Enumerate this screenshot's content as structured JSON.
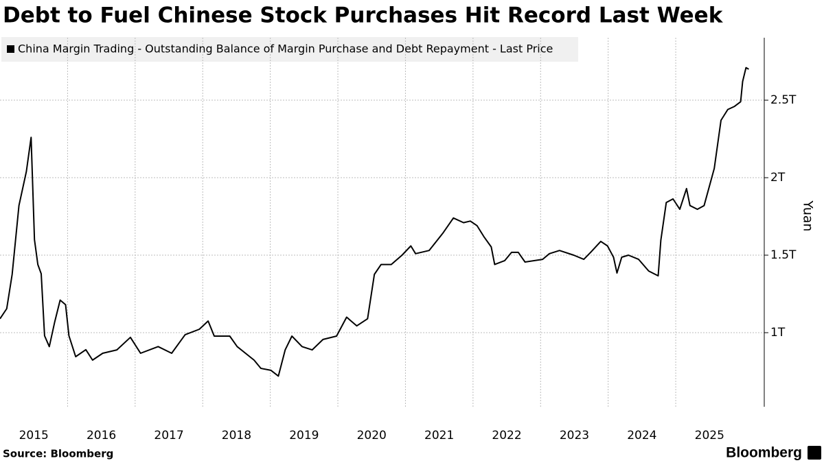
{
  "chart_data": {
    "type": "line",
    "title": "Debt to Fuel Chinese Stock Purchases Hit Record Last Week",
    "y_label": "Yuan",
    "source": "Source: Bloomberg",
    "brand": "Bloomberg",
    "grid": true,
    "x": [
      2015.0,
      2015.1,
      2015.18,
      2015.28,
      2015.39,
      2015.46,
      2015.51,
      2015.56,
      2015.61,
      2015.66,
      2015.73,
      2015.81,
      2015.89,
      2015.97,
      2016.02,
      2016.12,
      2016.27,
      2016.37,
      2016.52,
      2016.73,
      2016.93,
      2017.08,
      2017.34,
      2017.54,
      2017.74,
      2017.95,
      2018.08,
      2018.17,
      2018.4,
      2018.51,
      2018.76,
      2018.86,
      2019.01,
      2019.12,
      2019.22,
      2019.32,
      2019.47,
      2019.62,
      2019.78,
      2019.98,
      2020.13,
      2020.28,
      2020.44,
      2020.54,
      2020.64,
      2020.79,
      2020.95,
      2021.08,
      2021.15,
      2021.35,
      2021.55,
      2021.71,
      2021.86,
      2021.96,
      2022.06,
      2022.16,
      2022.27,
      2022.32,
      2022.47,
      2022.57,
      2022.67,
      2022.77,
      2023.03,
      2023.13,
      2023.28,
      2023.49,
      2023.64,
      2023.74,
      2023.89,
      2023.99,
      2024.08,
      2024.13,
      2024.2,
      2024.3,
      2024.45,
      2024.6,
      2024.74,
      2024.78,
      2024.86,
      2024.96,
      2025.06,
      2025.16,
      2025.21,
      2025.32,
      2025.42,
      2025.57,
      2025.67,
      2025.77,
      2025.87,
      2025.96,
      2025.99,
      2026.04,
      2026.08
    ],
    "series": [
      {
        "name": "China Margin Trading - Outstanding Balance of Margin Purchase and Debt Repayment - Last Price",
        "color": "#000000",
        "values": [
          1.09,
          1.155,
          1.376,
          1.82,
          2.04,
          2.26,
          1.6,
          1.44,
          1.38,
          0.98,
          0.91,
          1.07,
          1.21,
          1.18,
          0.98,
          0.845,
          0.89,
          0.823,
          0.867,
          0.889,
          0.97,
          0.867,
          0.91,
          0.867,
          0.987,
          1.022,
          1.075,
          0.978,
          0.978,
          0.91,
          0.823,
          0.77,
          0.757,
          0.72,
          0.889,
          0.978,
          0.91,
          0.889,
          0.956,
          0.978,
          1.1,
          1.044,
          1.09,
          1.376,
          1.44,
          1.44,
          1.5,
          1.56,
          1.51,
          1.53,
          1.64,
          1.74,
          1.71,
          1.72,
          1.69,
          1.62,
          1.553,
          1.44,
          1.465,
          1.518,
          1.518,
          1.456,
          1.473,
          1.51,
          1.53,
          1.5,
          1.473,
          1.518,
          1.589,
          1.56,
          1.487,
          1.385,
          1.487,
          1.5,
          1.473,
          1.398,
          1.367,
          1.597,
          1.84,
          1.863,
          1.796,
          1.93,
          1.82,
          1.796,
          1.82,
          2.06,
          2.37,
          2.44,
          2.46,
          2.49,
          2.62,
          2.71,
          2.7
        ]
      }
    ],
    "xlim": [
      2015.0,
      2026.31
    ],
    "xticks": [
      {
        "value": 2015,
        "label": "2015"
      },
      {
        "value": 2016,
        "label": "2016"
      },
      {
        "value": 2017,
        "label": "2017"
      },
      {
        "value": 2018,
        "label": "2018"
      },
      {
        "value": 2019,
        "label": "2019"
      },
      {
        "value": 2020,
        "label": "2020"
      },
      {
        "value": 2021,
        "label": "2021"
      },
      {
        "value": 2022,
        "label": "2022"
      },
      {
        "value": 2023,
        "label": "2023"
      },
      {
        "value": 2024,
        "label": "2024"
      },
      {
        "value": 2025,
        "label": "2025"
      }
    ],
    "ylim": [
      0.522,
      2.903
    ],
    "yticks": [
      {
        "value": 1,
        "label": "1T"
      },
      {
        "value": 1.5,
        "label": "1.5T"
      },
      {
        "value": 2,
        "label": "2T"
      },
      {
        "value": 2.5,
        "label": "2.5T"
      }
    ]
  }
}
